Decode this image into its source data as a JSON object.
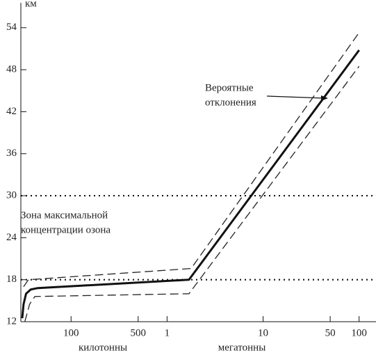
{
  "chart_data": {
    "type": "line",
    "log_x": true,
    "y_label": "км",
    "x_groups": [
      "килотонны",
      "мегатонны"
    ],
    "xlim": [
      30,
      150000
    ],
    "ylim": [
      12,
      57.5
    ],
    "xticks": [
      100,
      500,
      {
        "value": 1000,
        "label": "1"
      },
      {
        "value": 10000,
        "label": "10"
      },
      {
        "value": 50000,
        "label": "50"
      },
      {
        "value": 100000,
        "label": "100"
      }
    ],
    "yticks": [
      12,
      18,
      24,
      30,
      36,
      42,
      48,
      54
    ],
    "hlines": [
      18,
      30
    ],
    "annotations": [
      [
        "Вероятные",
        "отклонения"
      ],
      [
        "Зона максимальной",
        "концентрации озона"
      ]
    ],
    "series": [
      {
        "color": "#111",
        "style": "solid",
        "x": [
          31,
          32,
          34,
          38,
          45,
          1690,
          100000
        ],
        "values": [
          12.5,
          14.5,
          16,
          16.6,
          16.8,
          18,
          50.8
        ]
      },
      {
        "color": "#222",
        "style": "dashed",
        "x": [
          32,
          36,
          1780,
          100000
        ],
        "values": [
          17,
          18,
          19.6,
          53.3
        ]
      },
      {
        "color": "#222",
        "style": "dashed",
        "x": [
          33,
          37,
          42,
          1690,
          100000
        ],
        "values": [
          12,
          14.5,
          15.6,
          16,
          48.5
        ]
      }
    ]
  }
}
